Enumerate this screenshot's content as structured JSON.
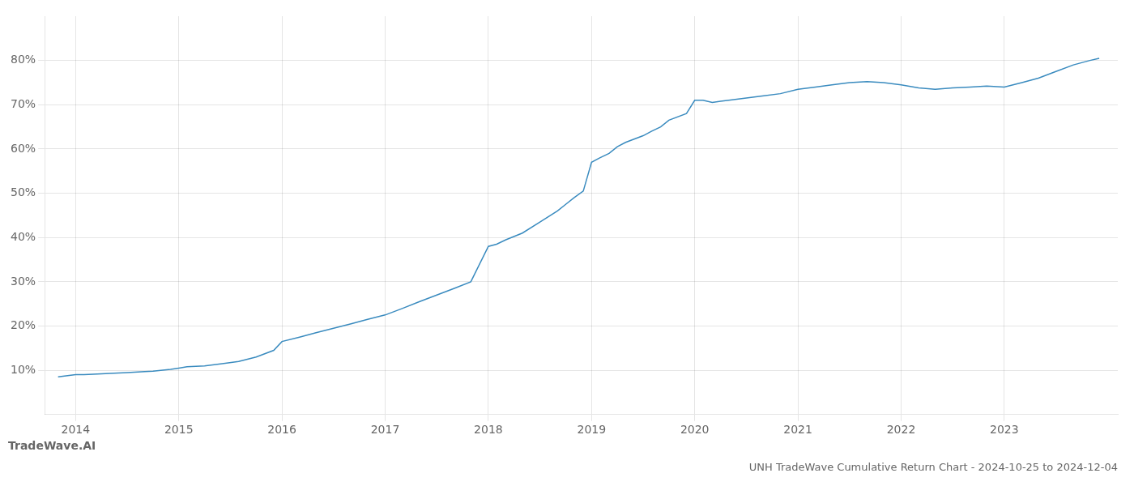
{
  "chart_data": {
    "type": "line",
    "title": "UNH TradeWave Cumulative Return Chart - 2024-10-25 to 2024-12-04",
    "annotations": [
      "TradeWave.AI"
    ],
    "x": [
      2013.83,
      2014.0,
      2014.08,
      2014.17,
      2014.25,
      2014.33,
      2014.5,
      2014.67,
      2014.75,
      2014.92,
      2015.0,
      2015.08,
      2015.25,
      2015.42,
      2015.58,
      2015.75,
      2015.92,
      2016.0,
      2016.17,
      2016.33,
      2016.5,
      2016.67,
      2016.83,
      2017.0,
      2017.17,
      2017.33,
      2017.5,
      2017.67,
      2017.83,
      2018.0,
      2018.08,
      2018.17,
      2018.33,
      2018.5,
      2018.67,
      2018.75,
      2018.83,
      2018.92,
      2019.0,
      2019.08,
      2019.17,
      2019.25,
      2019.33,
      2019.5,
      2019.58,
      2019.67,
      2019.75,
      2019.92,
      2020.0,
      2020.08,
      2020.17,
      2020.25,
      2020.33,
      2020.5,
      2020.67,
      2020.83,
      2021.0,
      2021.17,
      2021.33,
      2021.5,
      2021.67,
      2021.83,
      2022.0,
      2022.17,
      2022.33,
      2022.5,
      2022.67,
      2022.83,
      2023.0,
      2023.17,
      2023.33,
      2023.5,
      2023.67,
      2023.83,
      2023.92
    ],
    "values": [
      8.5,
      9.0,
      9.0,
      9.1,
      9.2,
      9.3,
      9.5,
      9.7,
      9.8,
      10.2,
      10.5,
      10.8,
      11.0,
      11.5,
      12.0,
      13.0,
      14.5,
      16.5,
      17.5,
      18.5,
      19.5,
      20.5,
      21.5,
      22.5,
      24.0,
      25.5,
      27.0,
      28.5,
      30.0,
      38.0,
      38.5,
      39.5,
      41.0,
      43.5,
      46.0,
      47.5,
      49.0,
      50.5,
      57.0,
      58.0,
      59.0,
      60.5,
      61.5,
      63.0,
      64.0,
      65.0,
      66.5,
      68.0,
      71.0,
      71.0,
      70.5,
      70.8,
      71.0,
      71.5,
      72.0,
      72.5,
      73.5,
      74.0,
      74.5,
      75.0,
      75.2,
      75.0,
      74.5,
      73.8,
      73.5,
      73.8,
      74.0,
      74.2,
      74.0,
      75.0,
      76.0,
      77.5,
      79.0,
      80.0,
      80.5
    ],
    "color": "#3a8bbf",
    "xlim": [
      2013.7,
      2024.1
    ],
    "ylim": [
      0,
      90
    ],
    "xticks": [
      2014,
      2015,
      2016,
      2017,
      2018,
      2019,
      2020,
      2021,
      2022,
      2023
    ],
    "yticks": [
      {
        "value": 10,
        "label": "10%"
      },
      {
        "value": 20,
        "label": "20%"
      },
      {
        "value": 30,
        "label": "30%"
      },
      {
        "value": 40,
        "label": "40%"
      },
      {
        "value": 50,
        "label": "50%"
      },
      {
        "value": 60,
        "label": "60%"
      },
      {
        "value": 70,
        "label": "70%"
      },
      {
        "value": 80,
        "label": "80%"
      }
    ],
    "grid": true
  }
}
